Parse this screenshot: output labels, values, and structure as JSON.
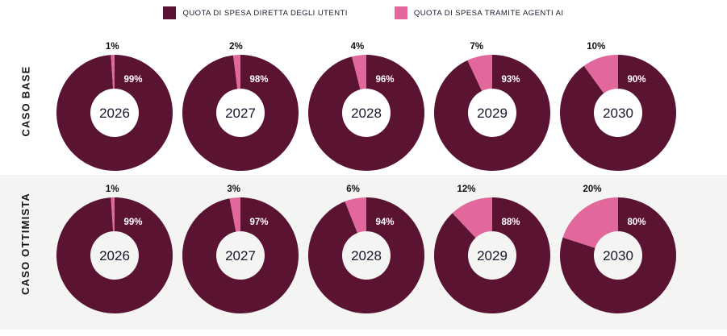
{
  "legend": {
    "items": [
      {
        "label": "QUOTA DI SPESA DIRETTA DEGLI UTENTI",
        "color": "#5a1331"
      },
      {
        "label": "QUOTA DI SPESA TRAMITE AGENTI AI",
        "color": "#e2679d"
      }
    ]
  },
  "colors": {
    "direct": "#5a1331",
    "agent": "#e2679d",
    "optimistic_row_bg": "#f4f4f2",
    "outer_label": "#111111",
    "inner_label": "#ffffff",
    "year_label": "#17172e"
  },
  "chart_data": {
    "type": "pie",
    "subtype": "donut-grid",
    "legend_position": "top",
    "series_names": [
      "QUOTA DI SPESA DIRETTA DEGLI UTENTI",
      "QUOTA DI SPESA TRAMITE AGENTI AI"
    ],
    "rows": [
      {
        "row_label": "CASO BASE",
        "donuts": [
          {
            "center_label": "2026",
            "direct_pct": 99,
            "agent_pct": 1,
            "direct_label": "99%",
            "agent_label": "1%"
          },
          {
            "center_label": "2027",
            "direct_pct": 98,
            "agent_pct": 2,
            "direct_label": "98%",
            "agent_label": "2%"
          },
          {
            "center_label": "2028",
            "direct_pct": 96,
            "agent_pct": 4,
            "direct_label": "96%",
            "agent_label": "4%"
          },
          {
            "center_label": "2029",
            "direct_pct": 93,
            "agent_pct": 7,
            "direct_label": "93%",
            "agent_label": "7%"
          },
          {
            "center_label": "2030",
            "direct_pct": 90,
            "agent_pct": 10,
            "direct_label": "90%",
            "agent_label": "10%"
          }
        ]
      },
      {
        "row_label": "CASO OTTIMISTA",
        "donuts": [
          {
            "center_label": "2026",
            "direct_pct": 99,
            "agent_pct": 1,
            "direct_label": "99%",
            "agent_label": "1%"
          },
          {
            "center_label": "2027",
            "direct_pct": 97,
            "agent_pct": 3,
            "direct_label": "97%",
            "agent_label": "3%"
          },
          {
            "center_label": "2028",
            "direct_pct": 94,
            "agent_pct": 6,
            "direct_label": "94%",
            "agent_label": "6%"
          },
          {
            "center_label": "2029",
            "direct_pct": 88,
            "agent_pct": 12,
            "direct_label": "88%",
            "agent_label": "12%"
          },
          {
            "center_label": "2030",
            "direct_pct": 80,
            "agent_pct": 20,
            "direct_label": "80%",
            "agent_label": "20%"
          }
        ]
      }
    ]
  }
}
